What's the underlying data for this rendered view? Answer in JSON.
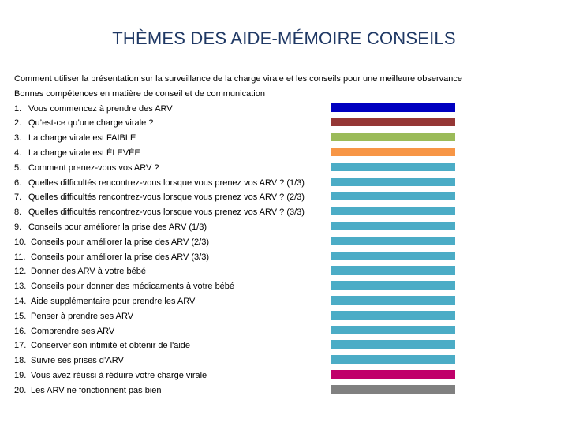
{
  "title": "THÈMES DES AIDE-MÉMOIRE CONSEILS",
  "intro": [
    "Comment utiliser la présentation sur la surveillance de la charge virale et les conseils pour une meilleure observance",
    "Bonnes compétences en matière de conseil et de communication"
  ],
  "items": [
    {
      "num": "1.",
      "label": "Vous commencez à prendre des ARV",
      "color": "#0000c0"
    },
    {
      "num": "2.",
      "label": "Qu’est-ce qu’une charge virale ?",
      "color": "#953735"
    },
    {
      "num": "3.",
      "label": "La charge virale est FAIBLE",
      "color": "#9bbb59"
    },
    {
      "num": "4.",
      "label": "La charge virale est ÉLEVÉE",
      "color": "#f79646"
    },
    {
      "num": "5.",
      "label": "Comment prenez-vous vos ARV ?",
      "color": "#4bacc6"
    },
    {
      "num": "6.",
      "label": "Quelles difficultés rencontrez-vous lorsque vous prenez vos ARV ? (1/3)",
      "color": "#4bacc6"
    },
    {
      "num": "7.",
      "label": "Quelles difficultés rencontrez-vous lorsque vous prenez vos ARV ? (2/3)",
      "color": "#4bacc6"
    },
    {
      "num": "8.",
      "label": "Quelles difficultés rencontrez-vous lorsque vous prenez vos ARV ? (3/3)",
      "color": "#4bacc6"
    },
    {
      "num": "9.",
      "label": "Conseils pour améliorer la prise des ARV (1/3)",
      "color": "#4bacc6"
    },
    {
      "num": "10.",
      "label": "Conseils pour améliorer la prise des ARV (2/3)",
      "color": "#4bacc6"
    },
    {
      "num": "11.",
      "label": "Conseils pour améliorer la prise des ARV (3/3)",
      "color": "#4bacc6"
    },
    {
      "num": "12.",
      "label": "Donner des ARV à votre bébé",
      "color": "#4bacc6"
    },
    {
      "num": "13.",
      "label": "Conseils pour donner des médicaments à votre bébé",
      "color": "#4bacc6"
    },
    {
      "num": "14.",
      "label": "Aide supplémentaire pour prendre les ARV",
      "color": "#4bacc6"
    },
    {
      "num": "15.",
      "label": "Penser à prendre ses ARV",
      "color": "#4bacc6"
    },
    {
      "num": "16.",
      "label": "Comprendre ses ARV",
      "color": "#4bacc6"
    },
    {
      "num": "17.",
      "label": "Conserver son intimité et obtenir de l'aide",
      "color": "#4bacc6"
    },
    {
      "num": "18.",
      "label": "Suivre ses prises d’ARV",
      "color": "#4bacc6"
    },
    {
      "num": "19.",
      "label": "Vous avez réussi à réduire votre charge virale",
      "color": "#c0006a"
    },
    {
      "num": "20.",
      "label": "Les ARV ne fonctionnent pas bien",
      "color": "#808080"
    }
  ]
}
